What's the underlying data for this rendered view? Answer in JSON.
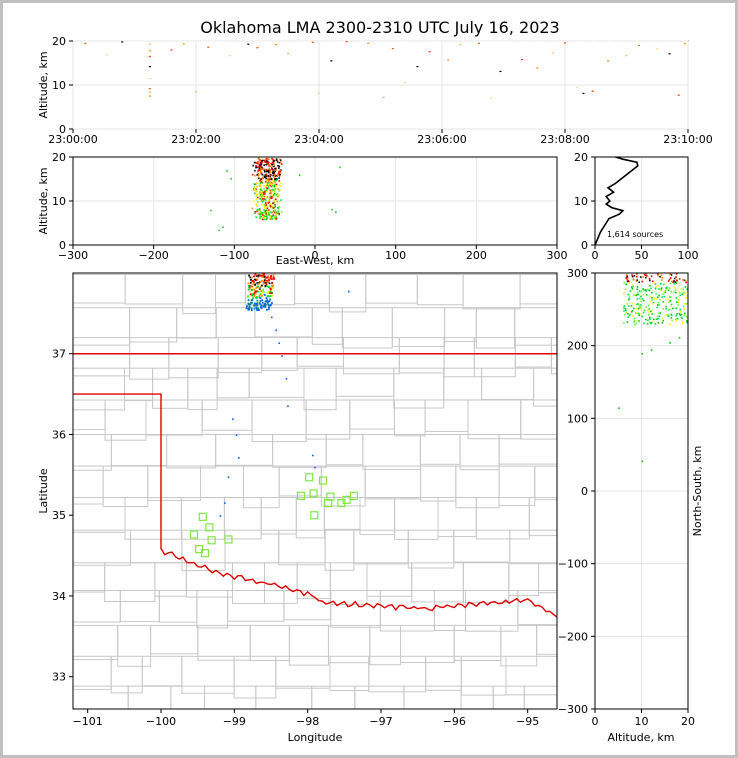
{
  "chart_data": [
    {
      "type": "scatter",
      "panel": "time-altitude",
      "title": "Oklahoma LMA 2300-2310 UTC July 16, 2023",
      "xlabel": "",
      "ylabel": "Altitude, km",
      "xticks": [
        "23:00:00",
        "23:02:00",
        "23:04:00",
        "23:06:00",
        "23:08:00",
        "23:10:00"
      ],
      "xlim_minutes": [
        0,
        10
      ],
      "ylim": [
        0,
        20
      ],
      "yticks": [
        0,
        10,
        20
      ],
      "grid": true,
      "points": [
        {
          "t": 1.25,
          "z": 7.5
        },
        {
          "t": 1.25,
          "z": 8.3
        },
        {
          "t": 1.25,
          "z": 9.2
        },
        {
          "t": 1.25,
          "z": 11.5
        },
        {
          "t": 1.25,
          "z": 14.2
        },
        {
          "t": 1.25,
          "z": 16.5
        },
        {
          "t": 1.25,
          "z": 17.8
        },
        {
          "t": 1.25,
          "z": 19.3
        },
        {
          "t": 0.2,
          "z": 19.5
        },
        {
          "t": 0.55,
          "z": 16.9
        },
        {
          "t": 0.8,
          "z": 19.8
        },
        {
          "t": 1.6,
          "z": 18.0
        },
        {
          "t": 1.8,
          "z": 19.4
        },
        {
          "t": 2.0,
          "z": 8.5
        },
        {
          "t": 2.2,
          "z": 18.6
        },
        {
          "t": 2.55,
          "z": 16.7
        },
        {
          "t": 2.85,
          "z": 19.3
        },
        {
          "t": 3.0,
          "z": 18.5
        },
        {
          "t": 3.3,
          "z": 19.2
        },
        {
          "t": 3.5,
          "z": 17.2
        },
        {
          "t": 3.9,
          "z": 19.7
        },
        {
          "t": 4.0,
          "z": 8.1
        },
        {
          "t": 4.2,
          "z": 15.5
        },
        {
          "t": 4.45,
          "z": 19.9
        },
        {
          "t": 4.8,
          "z": 19.5
        },
        {
          "t": 5.05,
          "z": 7.2
        },
        {
          "t": 5.2,
          "z": 18.3
        },
        {
          "t": 5.4,
          "z": 10.6
        },
        {
          "t": 5.6,
          "z": 14.2
        },
        {
          "t": 5.8,
          "z": 17.6
        },
        {
          "t": 6.1,
          "z": 15.7
        },
        {
          "t": 6.3,
          "z": 19.2
        },
        {
          "t": 6.6,
          "z": 19.5
        },
        {
          "t": 6.8,
          "z": 7.0
        },
        {
          "t": 6.95,
          "z": 13.1
        },
        {
          "t": 7.3,
          "z": 15.8
        },
        {
          "t": 7.55,
          "z": 13.9
        },
        {
          "t": 7.8,
          "z": 17.3
        },
        {
          "t": 8.0,
          "z": 19.6
        },
        {
          "t": 8.2,
          "z": 9.4
        },
        {
          "t": 8.3,
          "z": 8.1
        },
        {
          "t": 8.45,
          "z": 8.6
        },
        {
          "t": 8.7,
          "z": 15.5
        },
        {
          "t": 9.0,
          "z": 16.7
        },
        {
          "t": 9.2,
          "z": 19.0
        },
        {
          "t": 9.5,
          "z": 18.2
        },
        {
          "t": 9.7,
          "z": 17.1
        },
        {
          "t": 9.85,
          "z": 7.7
        },
        {
          "t": 9.95,
          "z": 19.4
        }
      ]
    },
    {
      "type": "scatter",
      "panel": "east-west-altitude",
      "xlabel": "East-West, km",
      "ylabel": "Altitude, km",
      "xlim": [
        -300,
        300
      ],
      "xticks": [
        -300,
        -200,
        -100,
        0,
        100,
        200,
        300
      ],
      "ylim": [
        0,
        20
      ],
      "yticks": [
        0,
        10,
        20
      ],
      "grid": true
    },
    {
      "type": "line",
      "panel": "altitude-histogram",
      "annotation": "1,614 sources",
      "xlim": [
        0,
        100
      ],
      "xticks": [
        0,
        50,
        100
      ],
      "ylim": [
        0,
        20
      ],
      "yticks": [
        0,
        10,
        20
      ],
      "grid": true,
      "profile": [
        {
          "count": 0,
          "alt": 0
        },
        {
          "count": 2,
          "alt": 1
        },
        {
          "count": 4,
          "alt": 2
        },
        {
          "count": 6,
          "alt": 3
        },
        {
          "count": 9,
          "alt": 4
        },
        {
          "count": 12,
          "alt": 5
        },
        {
          "count": 15,
          "alt": 6
        },
        {
          "count": 26,
          "alt": 7
        },
        {
          "count": 30,
          "alt": 7.8
        },
        {
          "count": 18,
          "alt": 8.5
        },
        {
          "count": 12,
          "alt": 9.3
        },
        {
          "count": 16,
          "alt": 10
        },
        {
          "count": 12,
          "alt": 11
        },
        {
          "count": 20,
          "alt": 12
        },
        {
          "count": 14,
          "alt": 13
        },
        {
          "count": 22,
          "alt": 14
        },
        {
          "count": 28,
          "alt": 15
        },
        {
          "count": 34,
          "alt": 16
        },
        {
          "count": 40,
          "alt": 17
        },
        {
          "count": 46,
          "alt": 18
        },
        {
          "count": 45,
          "alt": 18.8
        },
        {
          "count": 30,
          "alt": 19.5
        },
        {
          "count": 22,
          "alt": 20
        }
      ]
    },
    {
      "type": "scatter",
      "panel": "plan-view",
      "xlabel": "Longitude",
      "ylabel": "Latitude",
      "xlim": [
        -101.2,
        -94.6
      ],
      "ylim": [
        32.6,
        38.0
      ],
      "xticks": [
        -101,
        -100,
        -99,
        -98,
        -97,
        -96,
        -95
      ],
      "yticks": [
        33,
        34,
        35,
        36,
        37
      ],
      "stations_label": "",
      "stations": [
        {
          "lon": -97.98,
          "lat": 35.47
        },
        {
          "lon": -97.79,
          "lat": 35.43
        },
        {
          "lon": -98.09,
          "lat": 35.24
        },
        {
          "lon": -97.92,
          "lat": 35.27
        },
        {
          "lon": -97.69,
          "lat": 35.23
        },
        {
          "lon": -97.72,
          "lat": 35.15
        },
        {
          "lon": -97.54,
          "lat": 35.15
        },
        {
          "lon": -97.47,
          "lat": 35.19
        },
        {
          "lon": -97.37,
          "lat": 35.24
        },
        {
          "lon": -97.91,
          "lat": 35.0
        },
        {
          "lon": -99.43,
          "lat": 34.98
        },
        {
          "lon": -99.34,
          "lat": 34.85
        },
        {
          "lon": -99.55,
          "lat": 34.76
        },
        {
          "lon": -99.31,
          "lat": 34.69
        },
        {
          "lon": -99.48,
          "lat": 34.58
        },
        {
          "lon": -99.4,
          "lat": 34.53
        },
        {
          "lon": -99.08,
          "lat": 34.7
        }
      ],
      "flash_track": [
        {
          "lon": -98.7,
          "lat": 37.88
        },
        {
          "lon": -98.66,
          "lat": 37.82
        },
        {
          "lon": -98.6,
          "lat": 37.74
        },
        {
          "lon": -98.57,
          "lat": 37.66
        },
        {
          "lon": -98.54,
          "lat": 37.56
        },
        {
          "lon": -98.5,
          "lat": 37.46
        },
        {
          "lon": -98.44,
          "lat": 37.3
        },
        {
          "lon": -98.4,
          "lat": 37.14
        },
        {
          "lon": -98.36,
          "lat": 36.98
        },
        {
          "lon": -98.3,
          "lat": 36.7
        },
        {
          "lon": -98.28,
          "lat": 36.36
        },
        {
          "lon": -99.03,
          "lat": 36.2
        },
        {
          "lon": -98.98,
          "lat": 36.0
        },
        {
          "lon": -98.95,
          "lat": 35.72
        },
        {
          "lon": -99.09,
          "lat": 35.48
        },
        {
          "lon": -99.14,
          "lat": 35.16
        },
        {
          "lon": -99.2,
          "lat": 35.0
        },
        {
          "lon": -97.94,
          "lat": 35.75
        },
        {
          "lon": -97.91,
          "lat": 35.6
        },
        {
          "lon": -97.45,
          "lat": 37.78
        }
      ]
    },
    {
      "type": "scatter",
      "panel": "altitude-north-south",
      "xlabel": "Altitude, km",
      "ylabel": "North-South, km",
      "xlim": [
        0,
        20
      ],
      "xticks": [
        0,
        10,
        20
      ],
      "ylim": [
        -300,
        300
      ],
      "yticks": [
        -300,
        -200,
        -100,
        0,
        100,
        200,
        300
      ],
      "grid": true
    }
  ],
  "colors": {
    "state_border": "#e00000",
    "county_lines": "#c8c8c8",
    "station_marker": "#80e840",
    "histogram_line": "#000000",
    "gridline": "#e6e6e6"
  }
}
